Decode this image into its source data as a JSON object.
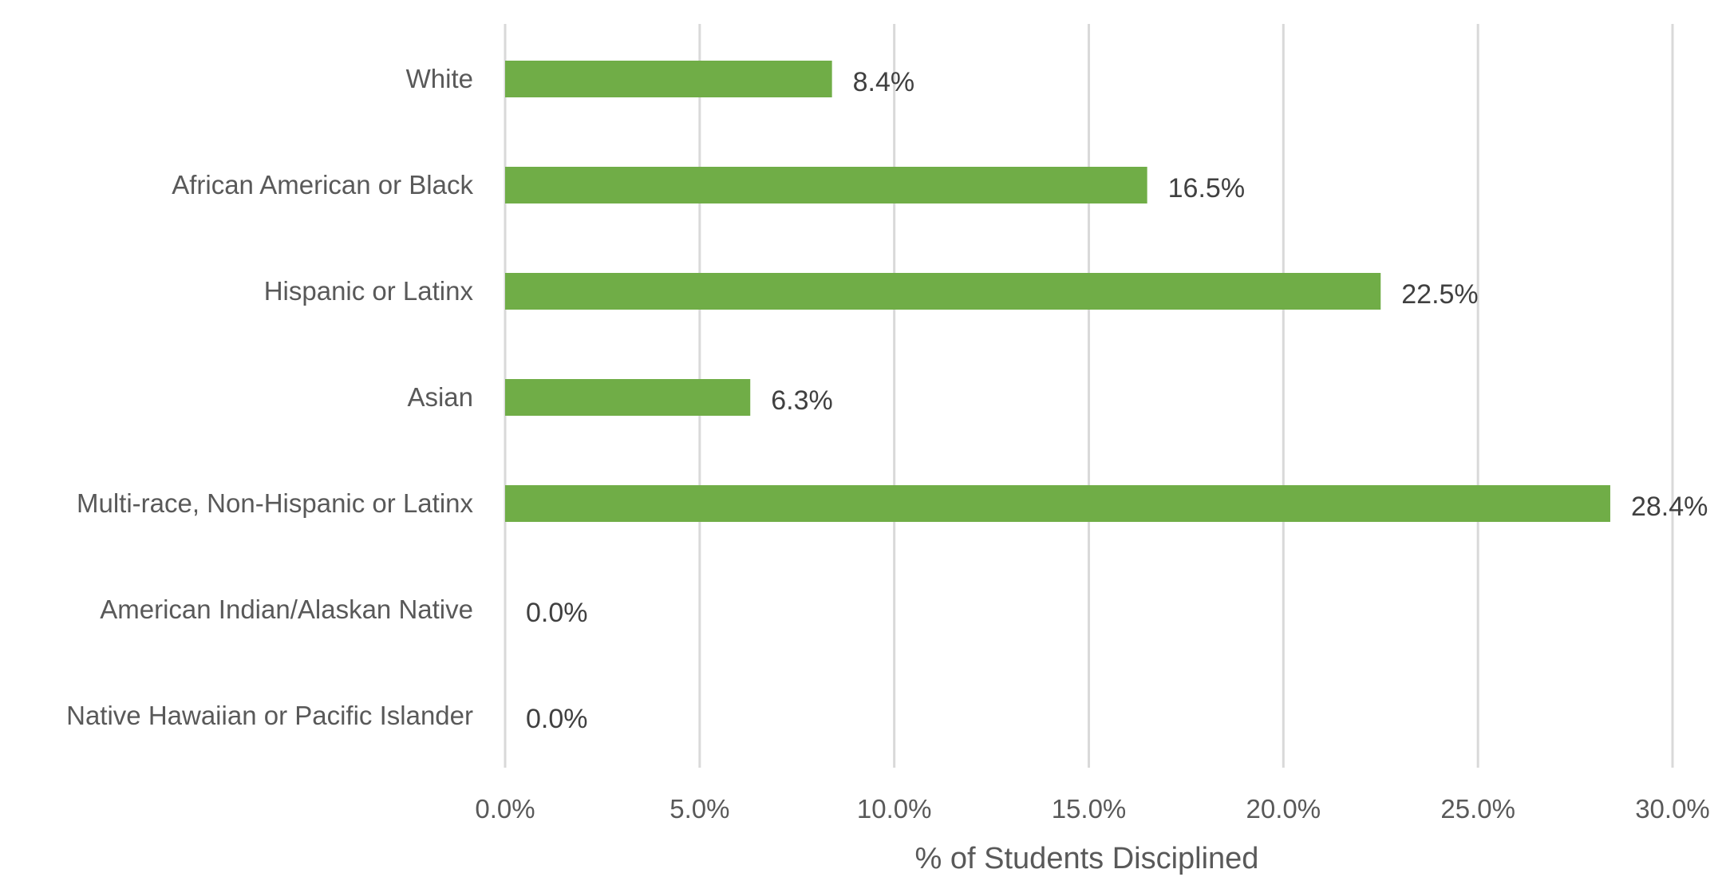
{
  "chart_data": {
    "type": "bar",
    "orientation": "horizontal",
    "categories": [
      "White",
      "African American or Black",
      "Hispanic or Latinx",
      "Asian",
      "Multi-race, Non-Hispanic or Latinx",
      "American Indian/Alaskan Native",
      "Native Hawaiian or Pacific Islander"
    ],
    "values": [
      8.4,
      16.5,
      22.5,
      6.3,
      28.4,
      0.0,
      0.0
    ],
    "data_labels": [
      "8.4%",
      "16.5%",
      "22.5%",
      "6.3%",
      "28.4%",
      "0.0%",
      "0.0%"
    ],
    "xlabel": "% of Students Disciplined",
    "xlim": [
      0,
      30
    ],
    "x_ticks": [
      0,
      5,
      10,
      15,
      20,
      25,
      30
    ],
    "x_tick_labels": [
      "0.0%",
      "5.0%",
      "10.0%",
      "15.0%",
      "20.0%",
      "25.0%",
      "30.0%"
    ],
    "grid": "vertical",
    "legend": "none",
    "bar_color": "#70AD47",
    "gridline_color": "#D9D9D9",
    "text_color": "#595959"
  }
}
